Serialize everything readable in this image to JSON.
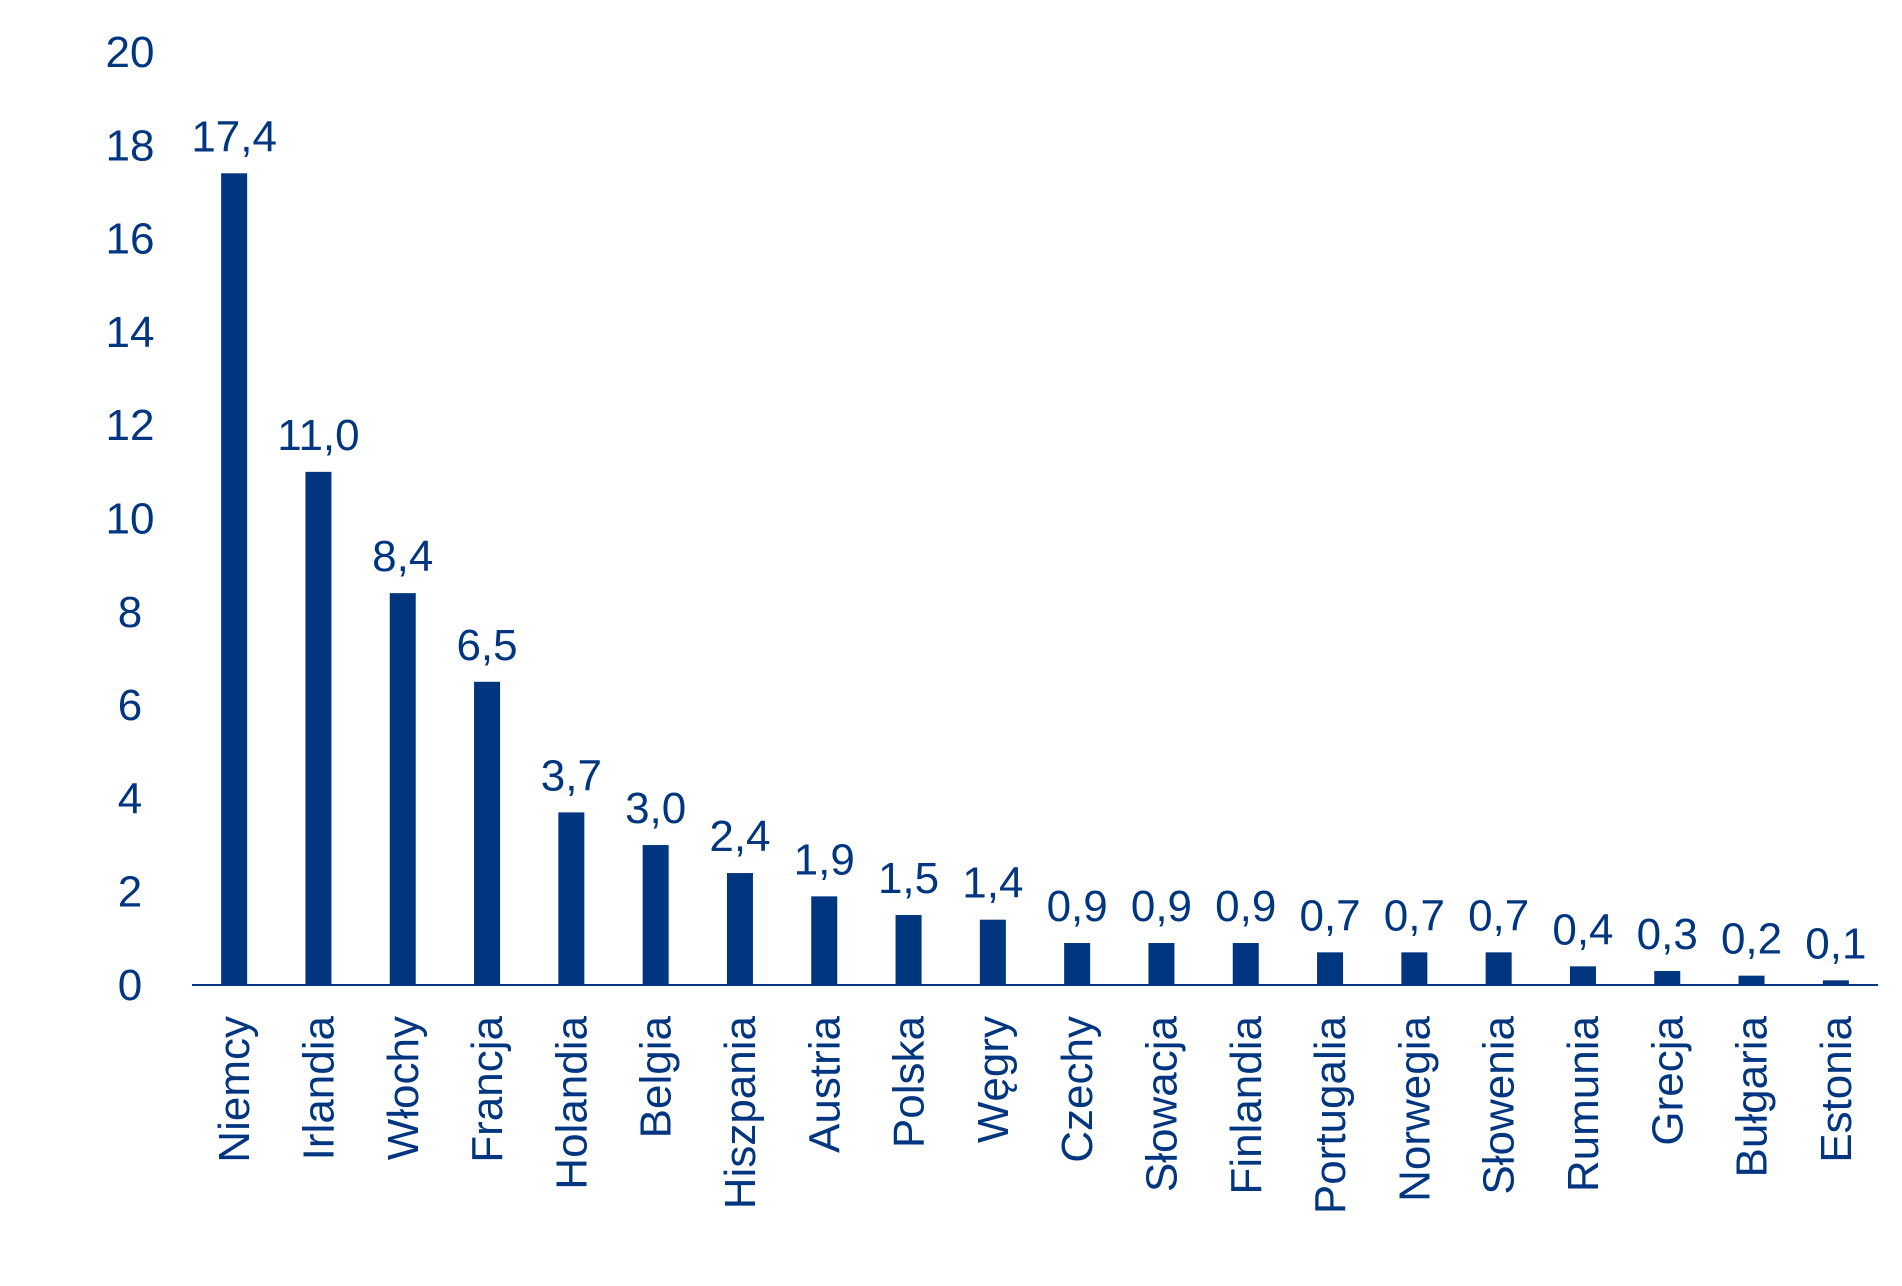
{
  "chart_data": {
    "type": "bar",
    "categories": [
      "Niemcy",
      "Irlandia",
      "Włochy",
      "Francja",
      "Holandia",
      "Belgia",
      "Hiszpania",
      "Austria",
      "Polska",
      "Węgry",
      "Czechy",
      "Słowacja",
      "Finlandia",
      "Portugalia",
      "Norwegia",
      "Słowenia",
      "Rumunia",
      "Grecja",
      "Bułgaria",
      "Estonia"
    ],
    "values": [
      17.4,
      11.0,
      8.4,
      6.5,
      3.7,
      3.0,
      2.4,
      1.9,
      1.5,
      1.4,
      0.9,
      0.9,
      0.9,
      0.7,
      0.7,
      0.7,
      0.4,
      0.3,
      0.2,
      0.1
    ],
    "data_labels": [
      "17,4",
      "11,0",
      "8,4",
      "6,5",
      "3,7",
      "3,0",
      "2,4",
      "1,9",
      "1,5",
      "1,4",
      "0,9",
      "0,9",
      "0,9",
      "0,7",
      "0,7",
      "0,7",
      "0,4",
      "0,3",
      "0,2",
      "0,1"
    ],
    "yticks": [
      "0",
      "2",
      "4",
      "6",
      "8",
      "10",
      "12",
      "14",
      "16",
      "18",
      "20"
    ],
    "ylim": [
      0,
      20
    ],
    "title": "",
    "xlabel": "",
    "ylabel": "",
    "grid": false,
    "legend": "none",
    "colors": {
      "bar": "#003580",
      "text": "#003580",
      "axis": "#003580"
    }
  }
}
